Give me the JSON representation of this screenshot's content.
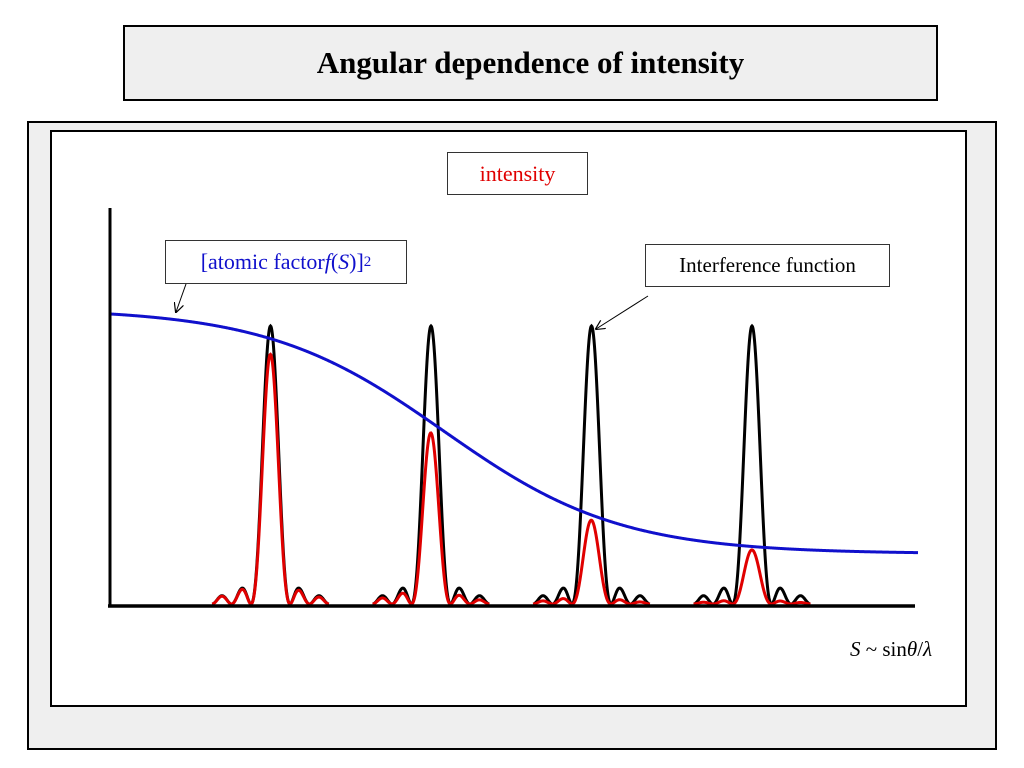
{
  "title": "Angular dependence of intensity",
  "labels": {
    "intensity": "intensity",
    "atomic_prefix": "[atomic factor ",
    "atomic_f": "f",
    "atomic_open": "(",
    "atomic_S": "S",
    "atomic_close": ")]",
    "atomic_exp": "2",
    "interference": "Interference function",
    "x_S": "S",
    "x_sep": " ~ sin",
    "x_theta": "θ",
    "x_slash": "/",
    "x_lambda": "λ"
  },
  "colors": {
    "interference": "#000000",
    "observed": "#e00000",
    "atomic_factor": "#1010cc",
    "axes": "#000000"
  },
  "curves": {
    "peak_positions": [
      1,
      2,
      3,
      4
    ],
    "side_maxima_relative": [
      0.16,
      0.043
    ],
    "atomic_factor": {
      "high": 1.0,
      "low": 0.17,
      "midpoint": 2.08,
      "width": 0.55
    }
  }
}
